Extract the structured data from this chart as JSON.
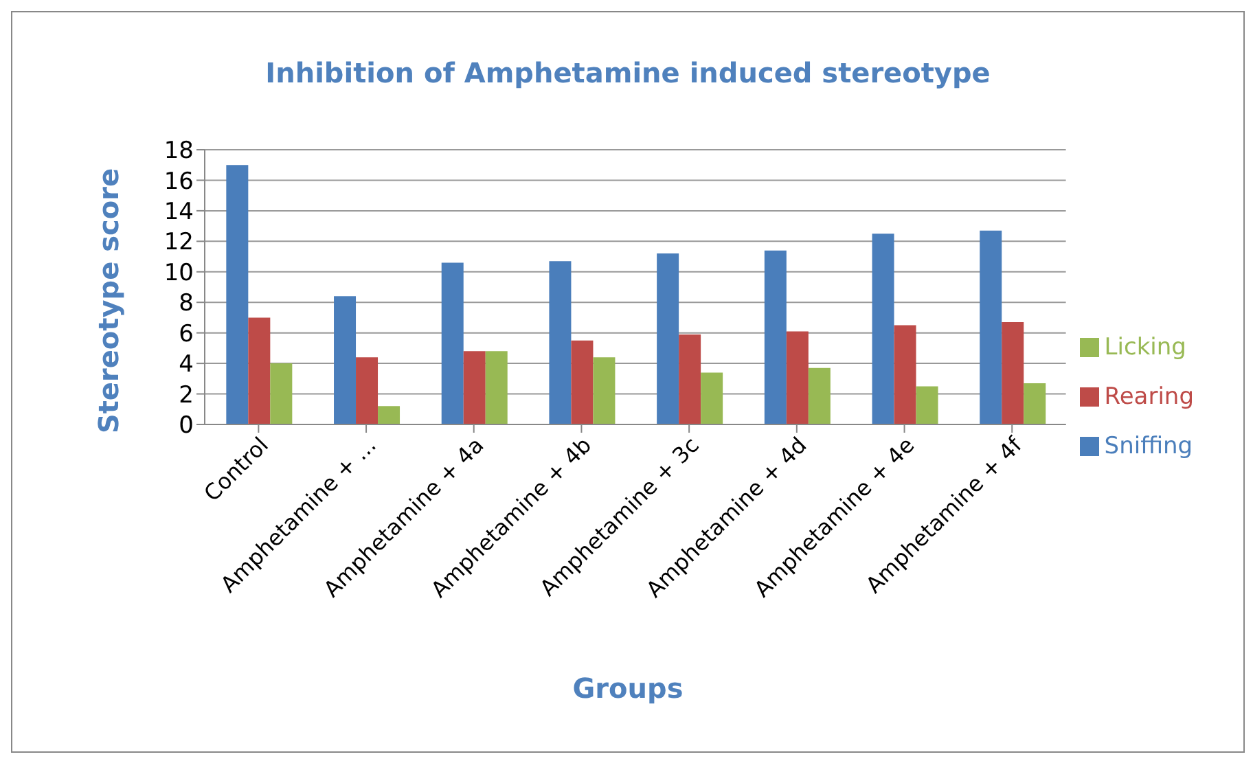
{
  "chart_data": {
    "type": "bar",
    "title": "Inhibition of Amphetamine induced stereotype",
    "xlabel": "Groups",
    "ylabel": "Stereotype score",
    "categories": [
      "Control",
      "Amphetamine + ...",
      "Amphetamine + 4a",
      "Amphetamine + 4b",
      "Amphetamine + 3c",
      "Amphetamine + 4d",
      "Amphetamine + 4e",
      "Amphetamine + 4f"
    ],
    "series": [
      {
        "name": "Sniffing",
        "color": "#4a7ebb",
        "values": [
          17,
          8.4,
          10.6,
          10.7,
          11.2,
          11.4,
          12.5,
          12.7
        ]
      },
      {
        "name": "Rearing",
        "color": "#be4b48",
        "values": [
          7,
          4.4,
          4.8,
          5.5,
          5.9,
          6.1,
          6.5,
          6.7
        ]
      },
      {
        "name": "Licking",
        "color": "#98b954",
        "values": [
          4,
          1.2,
          4.8,
          4.4,
          3.4,
          3.7,
          2.5,
          2.7
        ]
      }
    ],
    "ylim": [
      0,
      18
    ],
    "yticks": [
      0,
      2,
      4,
      6,
      8,
      10,
      12,
      14,
      16,
      18
    ],
    "grid": "y",
    "legend": "right"
  }
}
